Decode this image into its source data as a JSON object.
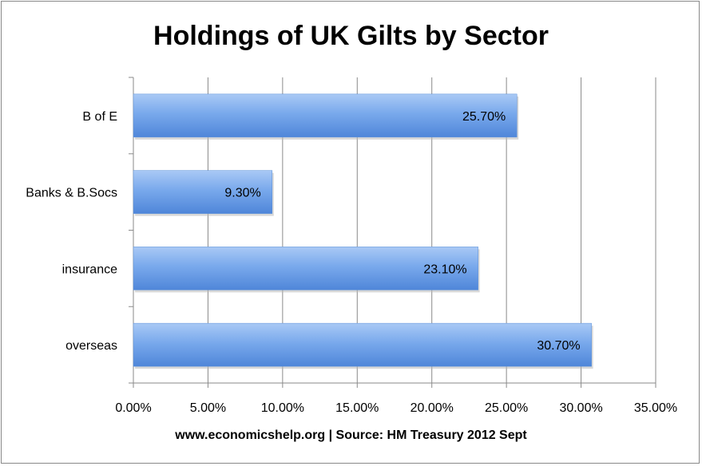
{
  "chart_data": {
    "type": "bar",
    "orientation": "horizontal",
    "title": "Holdings of UK Gilts by Sector",
    "xlabel": "www.economicshelp.org | Source: HM Treasury 2012 Sept",
    "ylabel": "",
    "categories": [
      "B of E",
      "Banks &  B.Socs",
      "insurance",
      "overseas"
    ],
    "values": [
      25.7,
      9.3,
      23.1,
      30.7
    ],
    "value_labels": [
      "25.70%",
      "9.30%",
      "23.10%",
      "30.70%"
    ],
    "xlim": [
      0,
      35
    ],
    "xticks": [
      0,
      5,
      10,
      15,
      20,
      25,
      30,
      35
    ],
    "xtick_labels": [
      "0.00%",
      "5.00%",
      "10.00%",
      "15.00%",
      "20.00%",
      "25.00%",
      "30.00%",
      "35.00%"
    ],
    "grid": true,
    "legend": "none",
    "bar_color": "#6fa0e8"
  }
}
